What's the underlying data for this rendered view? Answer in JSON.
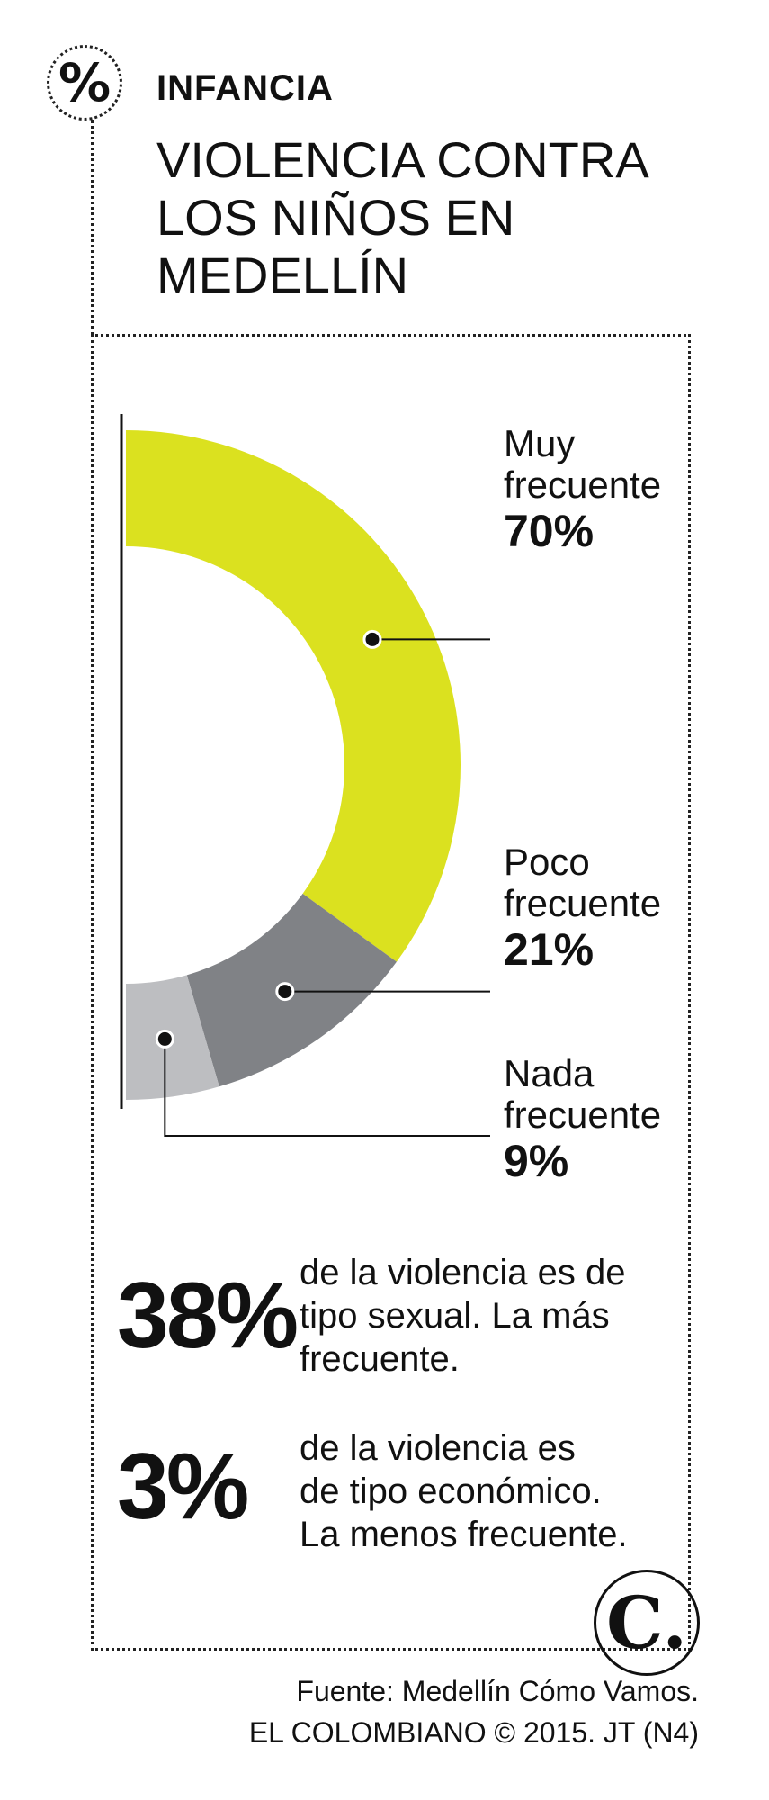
{
  "header": {
    "badge": "%",
    "kicker": "INFANCIA",
    "title_lines": [
      "VIOLENCIA CONTRA",
      "LOS NIÑOS EN",
      "MEDELLÍN"
    ]
  },
  "chart_data": {
    "type": "pie",
    "title": "VIOLENCIA CONTRA LOS NIÑOS EN MEDELLÍN",
    "categories": [
      "Muy frecuente",
      "Poco frecuente",
      "Nada frecuente"
    ],
    "values": [
      70,
      21,
      9
    ],
    "value_labels": [
      "70%",
      "21%",
      "9%"
    ],
    "label_lines": [
      [
        "Muy",
        "frecuente"
      ],
      [
        "Poco",
        "frecuente"
      ],
      [
        "Nada",
        "frecuente"
      ]
    ],
    "colors": [
      "#dbe11f",
      "#808286",
      "#bdbec1"
    ],
    "legend": "right"
  },
  "stats": [
    {
      "value": "38%",
      "lines": [
        "de la violencia es de",
        "tipo sexual. La más",
        "frecuente."
      ]
    },
    {
      "value": "3%",
      "lines": [
        "de la violencia es",
        "de tipo económico.",
        "La menos frecuente."
      ]
    }
  ],
  "logo": {
    "letter": "C."
  },
  "source": {
    "lines": [
      "Fuente: Medellín Cómo Vamos.",
      "EL COLOMBIANO © 2015. JT (N4)"
    ]
  }
}
